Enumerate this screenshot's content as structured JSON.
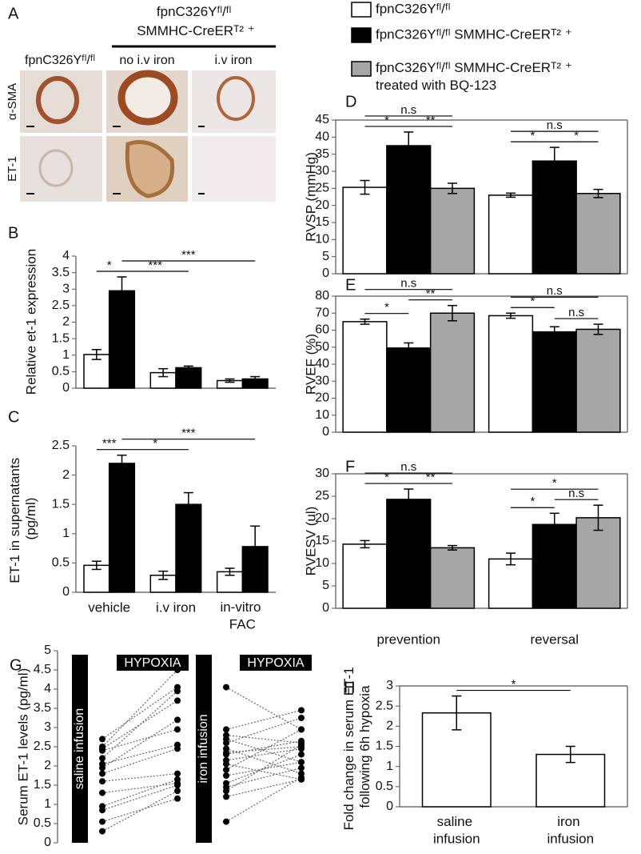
{
  "panel_a": {
    "label": "A",
    "group_header": "fpnC326Yᶠˡ/ᶠˡ SMMHC-CreERᵀ² ⁺",
    "columns": [
      "fpnC326Yᶠˡ/ᶠˡ",
      "no i.v iron",
      "i.v iron"
    ],
    "rows": [
      "α-SMA",
      "ET-1"
    ]
  },
  "chart_data": [
    {
      "type": "bar",
      "panel": "B",
      "ylabel": "Relative et-1 expression",
      "categories": [
        null,
        null,
        null
      ],
      "series": [
        {
          "color": "#ffffff",
          "values": [
            1.02,
            0.47,
            0.23
          ],
          "errors": [
            0.15,
            0.12,
            0.05
          ]
        },
        {
          "color": "#000000",
          "values": [
            2.95,
            0.62,
            0.28
          ],
          "errors": [
            0.42,
            0.05,
            0.07
          ]
        }
      ],
      "ylim": [
        0,
        4
      ],
      "yticks": [
        0,
        0.5,
        1,
        1.5,
        2,
        2.5,
        3,
        3.5,
        4
      ],
      "comparisons": [
        {
          "label": "*",
          "between": [
            [
              0,
              0
            ],
            [
              1,
              0
            ]
          ]
        },
        {
          "label": "***",
          "between": [
            [
              1,
              0
            ],
            [
              1,
              1
            ]
          ]
        },
        {
          "label": "***",
          "between": [
            [
              1,
              0
            ],
            [
              1,
              2
            ]
          ]
        }
      ]
    },
    {
      "type": "bar",
      "panel": "C",
      "ylabel": "ET-1 in supernatants (pg/ml)",
      "categories": [
        "vehicle",
        "i.v iron",
        "in-vitro FAC"
      ],
      "series": [
        {
          "color": "#ffffff",
          "values": [
            0.46,
            0.29,
            0.35
          ],
          "errors": [
            0.07,
            0.07,
            0.06
          ]
        },
        {
          "color": "#000000",
          "values": [
            2.2,
            1.5,
            0.78
          ],
          "errors": [
            0.14,
            0.2,
            0.35
          ]
        }
      ],
      "ylim": [
        0,
        2.5
      ],
      "yticks": [
        0,
        0.5,
        1,
        1.5,
        2,
        2.5
      ],
      "comparisons": [
        {
          "label": "***",
          "between": [
            [
              0,
              0
            ],
            [
              1,
              0
            ]
          ]
        },
        {
          "label": "*",
          "between": [
            [
              1,
              0
            ],
            [
              1,
              1
            ]
          ]
        },
        {
          "label": "***",
          "between": [
            [
              1,
              0
            ],
            [
              1,
              2
            ]
          ]
        }
      ]
    },
    {
      "type": "bar",
      "panel": "D",
      "ylabel": "RVSP (mmHg)",
      "categories": [
        null,
        null
      ],
      "series": [
        {
          "name": "fpnC326Yᶠˡ/ᶠˡ",
          "color": "#ffffff",
          "values": [
            25.3,
            23
          ],
          "errors": [
            2,
            0.6
          ]
        },
        {
          "name": "fpnC326Yᶠˡ/ᶠˡ SMMHC-CreERᵀ² ⁺",
          "color": "#000000",
          "values": [
            37.5,
            33
          ],
          "errors": [
            4,
            4
          ]
        },
        {
          "name": "fpnC326Yᶠˡ/ᶠˡ SMMHC-CreERᵀ² ⁺ treated with BQ-123",
          "color": "#a6a6a6",
          "values": [
            25,
            23.5
          ],
          "errors": [
            1.5,
            1.2
          ]
        }
      ],
      "ylim": [
        0,
        45
      ],
      "yticks": [
        0,
        5,
        10,
        15,
        20,
        25,
        30,
        35,
        40,
        45
      ],
      "comparisons": [
        {
          "label": "*",
          "between": [
            [
              0,
              0
            ],
            [
              1,
              0
            ]
          ]
        },
        {
          "label": "**",
          "between": [
            [
              1,
              0
            ],
            [
              2,
              0
            ]
          ]
        },
        {
          "label": "n.s",
          "between": [
            [
              0,
              0
            ],
            [
              2,
              0
            ]
          ]
        },
        {
          "label": "*",
          "between": [
            [
              0,
              1
            ],
            [
              1,
              1
            ]
          ]
        },
        {
          "label": "*",
          "between": [
            [
              1,
              1
            ],
            [
              2,
              1
            ]
          ]
        },
        {
          "label": "n.s",
          "between": [
            [
              0,
              1
            ],
            [
              2,
              1
            ]
          ]
        }
      ]
    },
    {
      "type": "bar",
      "panel": "E",
      "ylabel": "RVEF (%)",
      "categories": [
        null,
        null
      ],
      "series": [
        {
          "color": "#ffffff",
          "values": [
            65,
            68.5
          ],
          "errors": [
            1.5,
            1.5
          ]
        },
        {
          "color": "#000000",
          "values": [
            49.5,
            59
          ],
          "errors": [
            3,
            3
          ]
        },
        {
          "color": "#a6a6a6",
          "values": [
            70,
            60.5
          ],
          "errors": [
            4.5,
            3
          ]
        }
      ],
      "ylim": [
        0,
        80
      ],
      "yticks": [
        0,
        10,
        20,
        30,
        40,
        50,
        60,
        70,
        80
      ],
      "comparisons": [
        {
          "label": "*",
          "between": [
            [
              0,
              0
            ],
            [
              1,
              0
            ]
          ]
        },
        {
          "label": "**",
          "between": [
            [
              1,
              0
            ],
            [
              2,
              0
            ]
          ]
        },
        {
          "label": "n.s",
          "between": [
            [
              0,
              0
            ],
            [
              2,
              0
            ]
          ]
        },
        {
          "label": "*",
          "between": [
            [
              0,
              1
            ],
            [
              1,
              1
            ]
          ]
        },
        {
          "label": "n.s",
          "between": [
            [
              1,
              1
            ],
            [
              2,
              1
            ]
          ]
        },
        {
          "label": "n.s",
          "between": [
            [
              0,
              1
            ],
            [
              2,
              1
            ]
          ]
        }
      ]
    },
    {
      "type": "bar",
      "panel": "F",
      "ylabel": "RVESV (ul)",
      "categories": [
        "prevention",
        "reversal"
      ],
      "series": [
        {
          "color": "#ffffff",
          "values": [
            14.3,
            11
          ],
          "errors": [
            0.8,
            1.3
          ]
        },
        {
          "color": "#000000",
          "values": [
            24.3,
            18.7
          ],
          "errors": [
            2.3,
            2.5
          ]
        },
        {
          "color": "#a6a6a6",
          "values": [
            13.5,
            20.2
          ],
          "errors": [
            0.5,
            2.8
          ]
        }
      ],
      "ylim": [
        0,
        30
      ],
      "yticks": [
        0,
        5,
        10,
        15,
        20,
        25,
        30
      ],
      "comparisons": [
        {
          "label": "*",
          "between": [
            [
              0,
              0
            ],
            [
              1,
              0
            ]
          ]
        },
        {
          "label": "**",
          "between": [
            [
              1,
              0
            ],
            [
              2,
              0
            ]
          ]
        },
        {
          "label": "n.s",
          "between": [
            [
              0,
              0
            ],
            [
              2,
              0
            ]
          ]
        },
        {
          "label": "*",
          "between": [
            [
              0,
              1
            ],
            [
              1,
              1
            ]
          ]
        },
        {
          "label": "n.s",
          "between": [
            [
              1,
              1
            ],
            [
              2,
              1
            ]
          ]
        },
        {
          "label": "*",
          "between": [
            [
              0,
              1
            ],
            [
              2,
              1
            ]
          ]
        }
      ]
    },
    {
      "type": "paired",
      "panel": "G",
      "ylabel": "Serum ET-1 levels (pg/ml)",
      "groups": [
        {
          "name": "saline infusion",
          "header": "HYPOXIA",
          "before": [
            2.7,
            2.5,
            2.45,
            2.4,
            2.2,
            2.05,
            1.95,
            1.8,
            1.6,
            1.3,
            0.95,
            0.85,
            0.55,
            0.3
          ],
          "after": [
            4.05,
            4.5,
            3.7,
            2.95,
            3.95,
            2.55,
            3.2,
            2.45,
            1.8,
            1.55,
            1.65,
            1.5,
            1.15,
            1.35
          ]
        },
        {
          "name": "iron infusion",
          "header": "HYPOXIA",
          "before": [
            4.05,
            2.95,
            2.8,
            2.7,
            2.6,
            2.45,
            2.35,
            2.3,
            2.15,
            2.05,
            1.9,
            1.75,
            1.55,
            1.45,
            1.35,
            1.2,
            0.55
          ],
          "after": [
            2.95,
            3.45,
            2.6,
            2.1,
            3.25,
            1.8,
            2.5,
            2.65,
            2.45,
            1.65,
            2.95,
            2.1,
            2.3,
            1.95,
            2.55,
            1.65,
            1.7
          ]
        }
      ],
      "ylim": [
        0,
        5
      ],
      "yticks": [
        0,
        0.5,
        1,
        1.5,
        2,
        2.5,
        3,
        3.5,
        4,
        4.5,
        5
      ]
    },
    {
      "type": "bar",
      "panel": "H",
      "ylabel": "Fold change in serum ET-1 following 6h hypoxia",
      "categories": [
        "saline infusion",
        "iron infusion"
      ],
      "series": [
        {
          "color": "#ffffff",
          "values": [
            2.33,
            1.3
          ],
          "errors": [
            0.42,
            0.2
          ]
        }
      ],
      "ylim": [
        0,
        3
      ],
      "yticks": [
        0,
        0.5,
        1,
        1.5,
        2,
        2.5,
        3
      ],
      "comparisons": [
        {
          "label": "*",
          "between": [
            [
              0,
              0
            ],
            [
              0,
              1
            ]
          ]
        }
      ]
    }
  ]
}
